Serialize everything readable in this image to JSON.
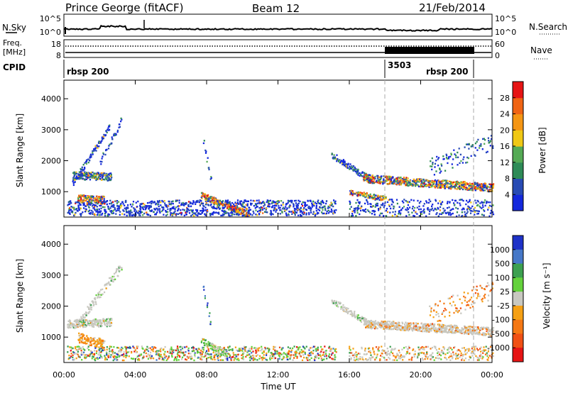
{
  "header": {
    "station": "Prince George (fitACF)",
    "beam": "Beam 12",
    "date": "21/Feb/2014"
  },
  "side_labels": {
    "nsky": "N.Sky",
    "nsearch": "N.Search",
    "freq_line1": "Freq.",
    "freq_line2": "[MHz]",
    "nave": "Nave",
    "cpid": "CPID"
  },
  "noise_axis": {
    "top": "10^5",
    "bottom": "10^0",
    "top_right": "10^5",
    "bottom_right": "10^0"
  },
  "freq_axis": {
    "left_ticks": [
      "18",
      "8"
    ],
    "right_ticks": [
      "60",
      "0"
    ]
  },
  "cpid_labels": [
    "rbsp 200",
    "3503",
    "rbsp 200"
  ],
  "colors": {
    "power": [
      "#1428dc",
      "#284bb4",
      "#2e8b57",
      "#55aa55",
      "#f0c814",
      "#f59614",
      "#f06414",
      "#e61414"
    ],
    "velocity": [
      "#1e32c8",
      "#4678c8",
      "#3ca050",
      "#64d23c",
      "#c8c8c0",
      "#f5a014",
      "#f57814",
      "#f05014",
      "#e61414"
    ]
  },
  "chart_data": [
    {
      "type": "heatmap",
      "quantity": "power",
      "ylabel": "Slant Range [km]",
      "ylim": [
        180,
        4600
      ],
      "y_ticks": [
        "1000",
        "2000",
        "3000",
        "4000"
      ],
      "y_tick_values": [
        1000,
        2000,
        3000,
        4000
      ],
      "colorbar_label": "Power [dB]",
      "colorbar_ticks": [
        "4",
        "8",
        "12",
        "16",
        "20",
        "24",
        "28"
      ],
      "colorbar_range": [
        0,
        32
      ],
      "color_levels": [
        0,
        4,
        8,
        12,
        16,
        20,
        24,
        28,
        32
      ]
    },
    {
      "type": "heatmap",
      "quantity": "velocity",
      "ylabel": "Slant Range [km]",
      "ylim": [
        180,
        4600
      ],
      "y_ticks": [
        "1000",
        "2000",
        "3000",
        "4000"
      ],
      "y_tick_values": [
        1000,
        2000,
        3000,
        4000
      ],
      "colorbar_label": "Velocity [m s⁻¹]",
      "colorbar_ticks": [
        "1000",
        "500",
        "100",
        "25",
        "-25",
        "-100",
        "-500",
        "-1000"
      ]
    }
  ],
  "time_axis": {
    "label": "Time UT",
    "ticks": [
      "00:00",
      "04:00",
      "08:00",
      "12:00",
      "16:00",
      "20:00",
      "00:00"
    ],
    "tick_hours": [
      0,
      4,
      8,
      12,
      16,
      20,
      24
    ],
    "xlim_hours": [
      0,
      24
    ]
  }
}
